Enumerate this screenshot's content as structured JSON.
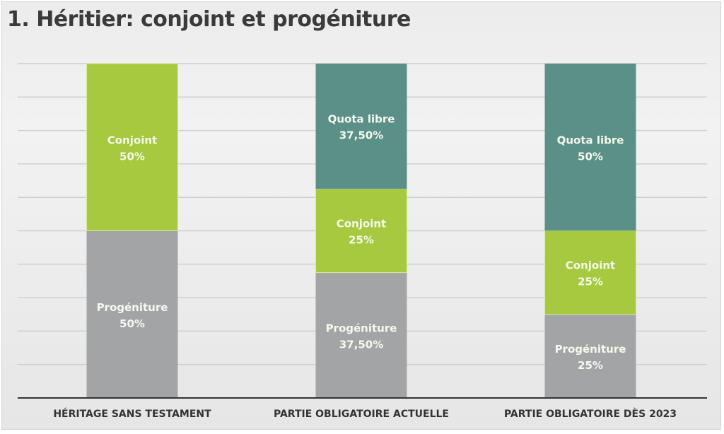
{
  "title": "1. Héritier: conjoint et progéniture",
  "colors": {
    "progeniture": "#a3a4a6",
    "conjoint": "#a6c940",
    "quota": "#5b9088",
    "grid": "#cfcfcf",
    "axis": "#333333"
  },
  "chart_data": {
    "type": "bar",
    "stacked": true,
    "title": "1. Héritier: conjoint et progéniture",
    "categories": [
      "HÉRITAGE SANS TESTAMENT",
      "PARTIE OBLIGATOIRE ACTUELLE",
      "PARTIE OBLIGATOIRE DÈS 2023"
    ],
    "ylim": [
      0,
      100
    ],
    "grid": true,
    "series": [
      {
        "name": "Progéniture",
        "color": "#a3a4a6",
        "values": [
          50,
          37.5,
          25
        ],
        "labels": [
          "50%",
          "37,50%",
          "25%"
        ]
      },
      {
        "name": "Conjoint",
        "color": "#a6c940",
        "values": [
          50,
          25,
          25
        ],
        "labels": [
          "50%",
          "25%",
          "25%"
        ]
      },
      {
        "name": "Quota libre",
        "color": "#5b9088",
        "values": [
          0,
          37.5,
          50
        ],
        "labels": [
          "",
          "37,50%",
          "50%"
        ]
      }
    ]
  }
}
